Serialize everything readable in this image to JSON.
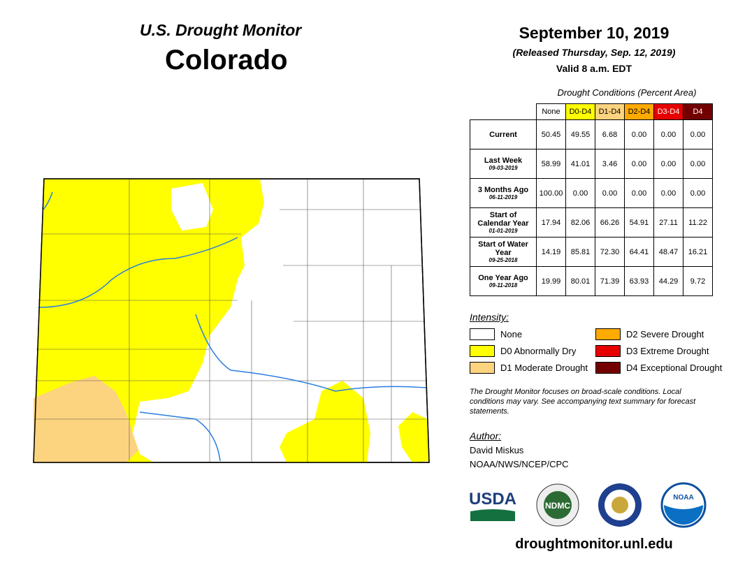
{
  "header": {
    "subtitle": "U.S. Drought Monitor",
    "title": "Colorado"
  },
  "info": {
    "date": "September 10, 2019",
    "released": "(Released Thursday, Sep. 12, 2019)",
    "valid": "Valid 8 a.m. EDT"
  },
  "table": {
    "caption": "Drought Conditions (Percent Area)",
    "columns": [
      "None",
      "D0-D4",
      "D1-D4",
      "D2-D4",
      "D3-D4",
      "D4"
    ],
    "rows": [
      {
        "label": "Current",
        "values": [
          "50.45",
          "49.55",
          "6.68",
          "0.00",
          "0.00",
          "0.00"
        ]
      },
      {
        "label": "Last Week",
        "date": "09-03-2019",
        "values": [
          "58.99",
          "41.01",
          "3.46",
          "0.00",
          "0.00",
          "0.00"
        ]
      },
      {
        "label": "3 Months Ago",
        "date": "06-11-2019",
        "values": [
          "100.00",
          "0.00",
          "0.00",
          "0.00",
          "0.00",
          "0.00"
        ]
      },
      {
        "label": "Start of Calendar Year",
        "date": "01-01-2019",
        "values": [
          "17.94",
          "82.06",
          "66.26",
          "54.91",
          "27.11",
          "11.22"
        ]
      },
      {
        "label": "Start of Water Year",
        "date": "09-25-2018",
        "values": [
          "14.19",
          "85.81",
          "72.30",
          "64.41",
          "48.47",
          "16.21"
        ]
      },
      {
        "label": "One Year Ago",
        "date": "09-11-2018",
        "values": [
          "19.99",
          "80.01",
          "71.39",
          "63.93",
          "44.29",
          "9.72"
        ]
      }
    ]
  },
  "legend": {
    "title": "Intensity:",
    "items": [
      {
        "label": "None",
        "color": "#ffffff"
      },
      {
        "label": "D0 Abnormally Dry",
        "color": "#ffff00"
      },
      {
        "label": "D1 Moderate Drought",
        "color": "#fcd37f"
      },
      {
        "label": "D2 Severe Drought",
        "color": "#ffaa00"
      },
      {
        "label": "D3 Extreme Drought",
        "color": "#e60000"
      },
      {
        "label": "D4 Exceptional Drought",
        "color": "#730000"
      }
    ]
  },
  "note": "The Drought Monitor focuses on broad-scale conditions. Local conditions may vary. See accompanying text summary for forecast statements.",
  "author": {
    "heading": "Author:",
    "name": "David Miskus",
    "org": "NOAA/NWS/NCEP/CPC"
  },
  "logos": [
    "USDA",
    "NDMC",
    "NOAA"
  ],
  "url": "droughtmonitor.unl.edu"
}
